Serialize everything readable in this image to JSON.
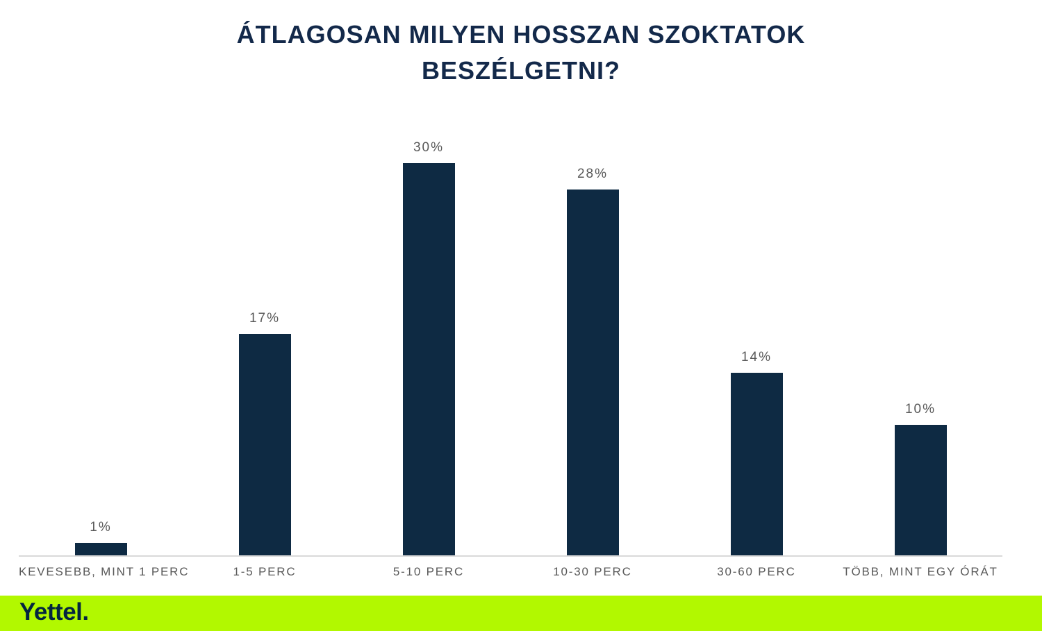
{
  "title": {
    "text": "ÁTLAGOSAN MILYEN HOSSZAN SZOKTATOK BESZÉLGETNI?",
    "lines": [
      "ÁTLAGOSAN MILYEN HOSSZAN SZOKTATOK",
      "BESZÉLGETNI?"
    ]
  },
  "chart_data": {
    "type": "bar",
    "title": "ÁTLAGOSAN MILYEN HOSSZAN SZOKTATOK BESZÉLGETNI?",
    "categories": [
      "KEVESEBB, MINT 1 PERC",
      "1-5 PERC",
      "5-10 PERC",
      "10-30 PERC",
      "30-60 PERC",
      "TÖBB, MINT EGY ÓRÁT"
    ],
    "values": [
      1,
      17,
      30,
      28,
      14,
      10
    ],
    "value_labels": [
      "1%",
      "17%",
      "30%",
      "28%",
      "14%",
      "10%"
    ],
    "xlabel": "",
    "ylabel": "",
    "ylim": [
      0,
      30
    ],
    "grid": false,
    "legend": null,
    "bar_color": "#0e2a43",
    "value_label_color": "#595959",
    "category_label_color": "#595959",
    "axis_line_color": "#d9d9d9"
  },
  "colors": {
    "title": "#13294a",
    "background": "#ffffff",
    "banner": "#b2f800",
    "logo": "#032540"
  },
  "footer": {
    "logo_text": "Yettel."
  }
}
